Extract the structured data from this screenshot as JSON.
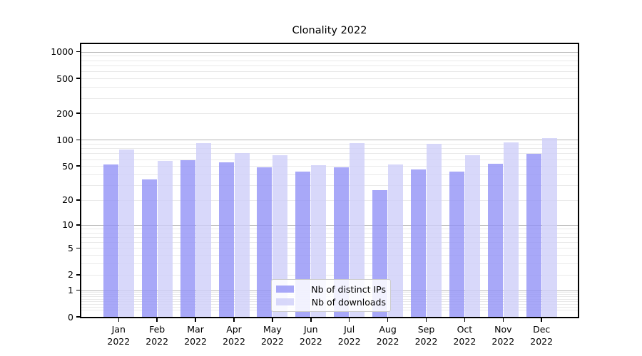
{
  "chart_data": {
    "type": "bar",
    "title": "Clonality 2022",
    "categories": [
      "Jan",
      "Feb",
      "Mar",
      "Apr",
      "May",
      "Jun",
      "Jul",
      "Aug",
      "Sep",
      "Oct",
      "Nov",
      "Dec"
    ],
    "category_year": "2022",
    "series": [
      {
        "name": "Nb of distinct IPs",
        "color": "rgba(146,146,246,0.8)",
        "values": [
          52,
          35,
          58,
          55,
          48,
          43,
          48,
          26,
          46,
          43,
          53,
          69
        ]
      },
      {
        "name": "Nb of downloads",
        "color": "rgba(206,206,249,0.8)",
        "values": [
          78,
          57,
          92,
          70,
          66,
          51,
          92,
          52,
          90,
          67,
          93,
          104
        ]
      }
    ],
    "yscale": "log1p",
    "ylim": [
      0,
      1220
    ],
    "yticks": [
      0,
      1,
      2,
      5,
      10,
      20,
      50,
      100,
      200,
      500,
      1000
    ],
    "major_gridlines": [
      1,
      10,
      100,
      1000
    ],
    "minor_gridlines": [
      0.2,
      0.3,
      0.4,
      0.5,
      0.6,
      0.7,
      0.8,
      0.9,
      2,
      3,
      4,
      5,
      6,
      7,
      8,
      9,
      20,
      30,
      40,
      50,
      60,
      70,
      80,
      90,
      200,
      300,
      400,
      500,
      600,
      700,
      800,
      900
    ],
    "grid": true,
    "legend_position": "lower center"
  },
  "colors": {
    "background": "#ffffff",
    "major_grid": "#b4b4b4",
    "minor_grid": "#e9e9e9",
    "axis": "#000000",
    "text": "#000000",
    "legend_border": "#cccccc"
  }
}
